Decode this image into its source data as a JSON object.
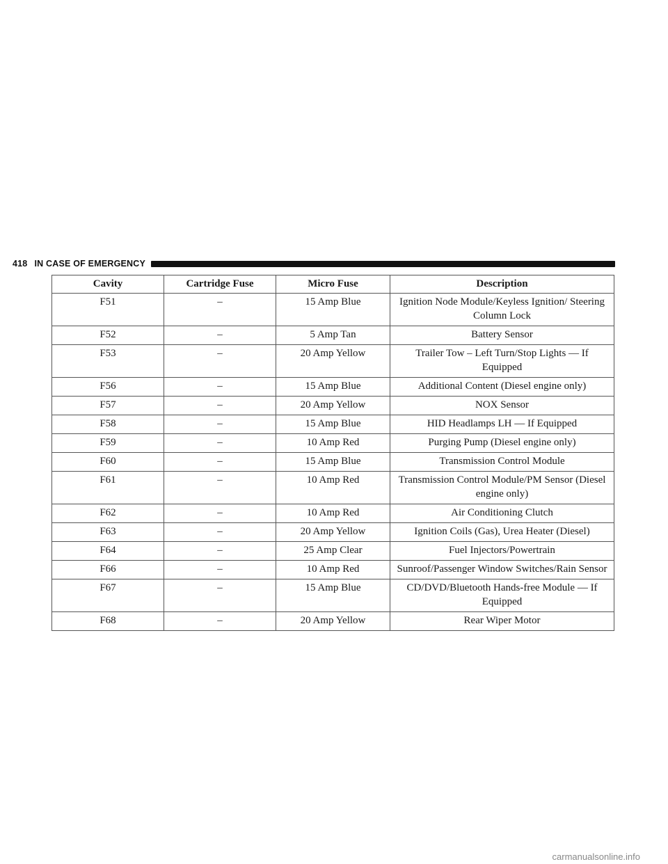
{
  "header": {
    "page_number": "418",
    "section": "IN CASE OF EMERGENCY"
  },
  "table": {
    "columns": [
      "Cavity",
      "Cartridge Fuse",
      "Micro Fuse",
      "Description"
    ],
    "rows": [
      [
        "F51",
        "–",
        "15 Amp Blue",
        "Ignition Node Module/Keyless Ignition/ Steering Column Lock"
      ],
      [
        "F52",
        "–",
        "5 Amp Tan",
        "Battery Sensor"
      ],
      [
        "F53",
        "–",
        "20 Amp Yellow",
        "Trailer Tow – Left Turn/Stop Lights — If Equipped"
      ],
      [
        "F56",
        "–",
        "15 Amp Blue",
        "Additional Content (Diesel engine only)"
      ],
      [
        "F57",
        "–",
        "20 Amp Yellow",
        "NOX Sensor"
      ],
      [
        "F58",
        "–",
        "15 Amp Blue",
        "HID Headlamps LH — If Equipped"
      ],
      [
        "F59",
        "–",
        "10 Amp Red",
        "Purging Pump (Diesel engine only)"
      ],
      [
        "F60",
        "–",
        "15 Amp Blue",
        "Transmission Control Module"
      ],
      [
        "F61",
        "–",
        "10 Amp Red",
        "Transmission Control Module/PM Sensor (Diesel engine only)"
      ],
      [
        "F62",
        "–",
        "10 Amp Red",
        "Air Conditioning Clutch"
      ],
      [
        "F63",
        "–",
        "20 Amp Yellow",
        "Ignition Coils (Gas), Urea Heater (Diesel)"
      ],
      [
        "F64",
        "–",
        "25 Amp Clear",
        "Fuel Injectors/Powertrain"
      ],
      [
        "F66",
        "–",
        "10 Amp Red",
        "Sunroof/Passenger Window Switches/Rain Sensor"
      ],
      [
        "F67",
        "–",
        "15 Amp Blue",
        "CD/DVD/Bluetooth Hands-free Module — If Equipped"
      ],
      [
        "F68",
        "–",
        "20 Amp Yellow",
        "Rear Wiper Motor"
      ]
    ]
  },
  "footer": {
    "watermark": "carmanualsonline.info"
  }
}
